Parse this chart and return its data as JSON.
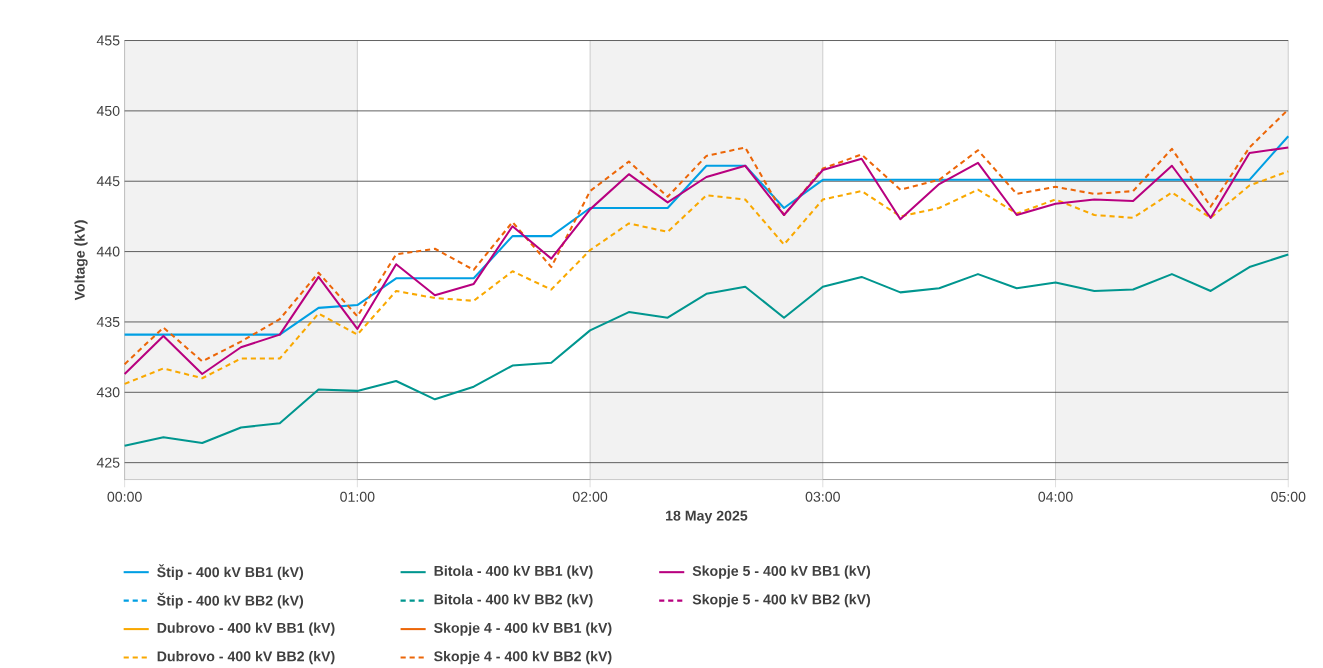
{
  "chart_data": {
    "type": "line",
    "xlabel": "18 May 2025",
    "ylabel": "Voltage (kV)",
    "x": [
      0,
      0.1667,
      0.3333,
      0.5,
      0.6667,
      0.8333,
      1,
      1.1667,
      1.3333,
      1.5,
      1.6667,
      1.8333,
      2,
      2.1667,
      2.3333,
      2.5,
      2.6667,
      2.8333,
      3,
      3.1667,
      3.3333,
      3.5,
      3.6667,
      3.8333,
      4,
      4.1667,
      4.3333,
      4.5,
      4.6667,
      4.8333,
      5
    ],
    "xlim": [
      0,
      5
    ],
    "ylim": [
      423.8,
      455
    ],
    "xticks": [
      {
        "value": 0,
        "label": "00:00"
      },
      {
        "value": 1,
        "label": "01:00"
      },
      {
        "value": 2,
        "label": "02:00"
      },
      {
        "value": 3,
        "label": "03:00"
      },
      {
        "value": 4,
        "label": "04:00"
      },
      {
        "value": 5,
        "label": "05:00"
      }
    ],
    "yticks": [
      425,
      430,
      435,
      440,
      445,
      450,
      455
    ],
    "grid": true,
    "legend": "bottom",
    "bands": [
      {
        "axis": "x",
        "from": 0,
        "to": 1,
        "color": "#f2f2f2"
      },
      {
        "axis": "x",
        "from": 2,
        "to": 3,
        "color": "#f2f2f2"
      },
      {
        "axis": "x",
        "from": 4,
        "to": 5,
        "color": "#f2f2f2"
      }
    ],
    "series": [
      {
        "name": "Štip - 400 kV BB1 (kV)",
        "color": "#009fe3",
        "line_style": "solid",
        "values": [
          434.1,
          434.1,
          434.1,
          434.1,
          434.1,
          436.0,
          436.2,
          438.1,
          438.1,
          438.1,
          441.1,
          441.1,
          443.1,
          443.1,
          443.1,
          446.1,
          446.1,
          443.1,
          445.1,
          445.1,
          445.1,
          445.1,
          445.1,
          445.1,
          445.1,
          445.1,
          445.1,
          445.1,
          445.1,
          445.1,
          448.2
        ]
      },
      {
        "name": "Štip - 400 kV BB2 (kV)",
        "color": "#009fe3",
        "line_style": "dashed",
        "values": [
          null,
          null,
          null,
          null,
          null,
          null,
          null,
          null,
          null,
          null,
          null,
          null,
          null,
          null,
          null,
          null,
          null,
          null,
          null,
          null,
          null,
          null,
          null,
          null,
          null,
          null,
          null,
          null,
          null,
          null,
          null
        ]
      },
      {
        "name": "Dubrovo - 400 kV BB1 (kV)",
        "color": "#f9a800",
        "line_style": "solid",
        "values": [
          null,
          null,
          null,
          null,
          null,
          null,
          null,
          null,
          null,
          null,
          null,
          null,
          null,
          null,
          null,
          null,
          null,
          null,
          null,
          null,
          null,
          null,
          null,
          null,
          null,
          null,
          null,
          null,
          null,
          null,
          null
        ]
      },
      {
        "name": "Dubrovo - 400 kV BB2 (kV)",
        "color": "#f9a800",
        "line_style": "dashed",
        "values": [
          430.6,
          431.7,
          431.0,
          432.4,
          432.4,
          435.6,
          434.1,
          437.2,
          436.7,
          436.5,
          438.6,
          437.3,
          440.1,
          442.0,
          441.4,
          444.0,
          443.7,
          440.5,
          443.7,
          444.3,
          442.5,
          443.1,
          444.4,
          442.7,
          443.7,
          442.6,
          442.4,
          444.2,
          442.4,
          444.7,
          445.7
        ]
      },
      {
        "name": "Bitola - 400 kV BB1 (kV)",
        "color": "#00968f",
        "line_style": "solid",
        "values": [
          426.2,
          426.8,
          426.4,
          427.5,
          427.8,
          430.2,
          430.1,
          430.8,
          429.5,
          430.4,
          431.9,
          432.1,
          434.4,
          435.7,
          435.3,
          437.0,
          437.5,
          435.3,
          437.5,
          438.2,
          437.1,
          437.4,
          438.4,
          437.4,
          437.8,
          437.2,
          437.3,
          438.4,
          437.2,
          438.9,
          439.8
        ]
      },
      {
        "name": "Bitola - 400 kV BB2 (kV)",
        "color": "#00968f",
        "line_style": "dashed",
        "values": [
          null,
          null,
          null,
          null,
          null,
          null,
          null,
          null,
          null,
          null,
          null,
          null,
          null,
          null,
          null,
          null,
          null,
          null,
          null,
          null,
          null,
          null,
          null,
          null,
          null,
          null,
          null,
          null,
          null,
          null,
          null
        ]
      },
      {
        "name": "Skopje 4 - 400 kV BB1 (kV)",
        "color": "#ec6608",
        "line_style": "solid",
        "values": [
          null,
          null,
          null,
          null,
          null,
          null,
          null,
          null,
          null,
          null,
          null,
          null,
          null,
          null,
          null,
          null,
          null,
          null,
          null,
          null,
          null,
          null,
          null,
          null,
          null,
          null,
          null,
          null,
          null,
          null,
          null
        ]
      },
      {
        "name": "Skopje 4 - 400 kV BB2 (kV)",
        "color": "#ec6608",
        "line_style": "dashed",
        "values": [
          432.0,
          434.6,
          432.2,
          433.6,
          435.2,
          438.5,
          435.4,
          439.8,
          440.2,
          438.7,
          442.1,
          438.9,
          444.3,
          446.4,
          443.9,
          446.8,
          447.4,
          442.6,
          445.9,
          446.9,
          444.4,
          445.1,
          447.2,
          444.1,
          444.6,
          444.1,
          444.3,
          447.3,
          443.2,
          447.4,
          450.1
        ]
      },
      {
        "name": "Skopje 5 - 400 kV BB1 (kV)",
        "color": "#b8007f",
        "line_style": "solid",
        "values": [
          431.3,
          434.0,
          431.3,
          433.2,
          434.1,
          438.2,
          434.5,
          439.1,
          436.9,
          437.7,
          441.8,
          439.5,
          443.0,
          445.5,
          443.5,
          445.3,
          446.1,
          442.6,
          445.8,
          446.6,
          442.3,
          444.8,
          446.3,
          442.6,
          443.4,
          443.7,
          443.6,
          446.1,
          442.4,
          447.0,
          447.4
        ]
      },
      {
        "name": "Skopje 5 - 400 kV BB2 (kV)",
        "color": "#b8007f",
        "line_style": "dashed",
        "values": [
          null,
          null,
          null,
          null,
          null,
          null,
          null,
          null,
          null,
          null,
          null,
          null,
          null,
          null,
          null,
          null,
          null,
          null,
          null,
          null,
          null,
          null,
          null,
          null,
          null,
          null,
          null,
          null,
          null,
          null,
          null
        ]
      }
    ]
  }
}
